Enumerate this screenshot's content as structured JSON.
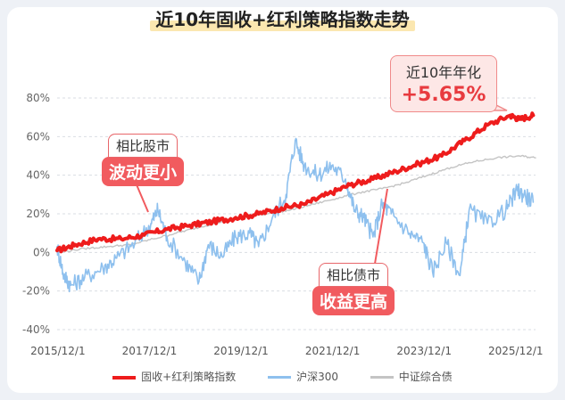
{
  "chart_data": {
    "type": "line",
    "title": "近10年固收+红利策略指数走势",
    "x_tick_labels": [
      "2015/12/1",
      "2017/12/1",
      "2019/12/1",
      "2021/12/1",
      "2023/12/1",
      "2025/12/1"
    ],
    "y_tick_labels": [
      "80%",
      "60%",
      "40%",
      "20%",
      "0%",
      "-20%",
      "-40%"
    ],
    "ylim": [
      -40,
      80
    ],
    "x_range": [
      2015.9,
      2026.35
    ],
    "grid": "horizontal-dashed",
    "legend_position": "bottom",
    "series": [
      {
        "name": "固收+红利策略指数",
        "color": "#ee1c1c",
        "points": [
          [
            2015.9,
            1
          ],
          [
            2016.3,
            4
          ],
          [
            2016.8,
            7
          ],
          [
            2017.3,
            7
          ],
          [
            2017.8,
            9
          ],
          [
            2018.3,
            12
          ],
          [
            2018.8,
            14
          ],
          [
            2019.3,
            16
          ],
          [
            2019.8,
            18
          ],
          [
            2020.3,
            20
          ],
          [
            2020.8,
            23
          ],
          [
            2021.3,
            25
          ],
          [
            2021.8,
            30
          ],
          [
            2022.3,
            35
          ],
          [
            2022.8,
            38
          ],
          [
            2023.3,
            42
          ],
          [
            2023.8,
            46
          ],
          [
            2024.3,
            50
          ],
          [
            2024.8,
            58
          ],
          [
            2025.3,
            66
          ],
          [
            2025.8,
            71
          ],
          [
            2026.0,
            69
          ],
          [
            2026.3,
            71
          ]
        ]
      },
      {
        "name": "沪深300",
        "color": "#8ec0ee",
        "points": [
          [
            2015.9,
            3
          ],
          [
            2016.05,
            -12
          ],
          [
            2016.2,
            -17
          ],
          [
            2016.5,
            -13
          ],
          [
            2016.9,
            -8
          ],
          [
            2017.2,
            -3
          ],
          [
            2017.6,
            5
          ],
          [
            2017.95,
            15
          ],
          [
            2018.1,
            22
          ],
          [
            2018.3,
            8
          ],
          [
            2018.7,
            -5
          ],
          [
            2019.0,
            -15
          ],
          [
            2019.2,
            4
          ],
          [
            2019.5,
            -2
          ],
          [
            2019.8,
            8
          ],
          [
            2020.1,
            10
          ],
          [
            2020.3,
            3
          ],
          [
            2020.6,
            18
          ],
          [
            2020.9,
            30
          ],
          [
            2021.1,
            58
          ],
          [
            2021.3,
            45
          ],
          [
            2021.6,
            40
          ],
          [
            2021.9,
            45
          ],
          [
            2022.2,
            38
          ],
          [
            2022.4,
            22
          ],
          [
            2022.6,
            18
          ],
          [
            2022.8,
            8
          ],
          [
            2023.0,
            25
          ],
          [
            2023.2,
            20
          ],
          [
            2023.6,
            10
          ],
          [
            2023.9,
            5
          ],
          [
            2024.1,
            -10
          ],
          [
            2024.4,
            5
          ],
          [
            2024.7,
            -12
          ],
          [
            2024.9,
            22
          ],
          [
            2025.3,
            15
          ],
          [
            2025.7,
            22
          ],
          [
            2025.95,
            32
          ],
          [
            2026.1,
            30
          ],
          [
            2026.3,
            26
          ]
        ]
      },
      {
        "name": "中证综合债",
        "color": "#c4c4c4",
        "points": [
          [
            2015.9,
            0
          ],
          [
            2016.5,
            2
          ],
          [
            2017.0,
            3
          ],
          [
            2017.5,
            4
          ],
          [
            2018.0,
            7
          ],
          [
            2018.5,
            10
          ],
          [
            2019.0,
            13
          ],
          [
            2019.5,
            16
          ],
          [
            2020.0,
            19
          ],
          [
            2020.5,
            20
          ],
          [
            2021.0,
            22
          ],
          [
            2021.5,
            25
          ],
          [
            2022.0,
            28
          ],
          [
            2022.5,
            31
          ],
          [
            2023.0,
            33
          ],
          [
            2023.5,
            36
          ],
          [
            2024.0,
            40
          ],
          [
            2024.5,
            44
          ],
          [
            2025.0,
            47
          ],
          [
            2025.5,
            49
          ],
          [
            2026.0,
            50
          ],
          [
            2026.35,
            49
          ]
        ]
      }
    ]
  },
  "annotations": {
    "vs_stock_line1": "相比股市",
    "vs_stock_line2": "波动更小",
    "vs_bond_line1": "相比债市",
    "vs_bond_line2": "收益更高",
    "annual_label": "近10年年化",
    "annual_value": "+5.65%"
  }
}
